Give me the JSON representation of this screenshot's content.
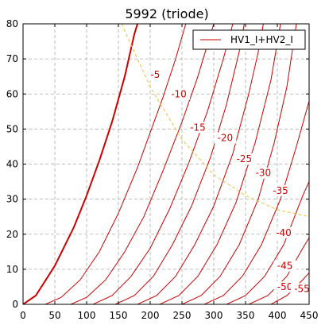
{
  "chart_data": {
    "type": "line",
    "title": "5992 (triode)",
    "xlabel": "",
    "ylabel": "",
    "xlim": [
      0,
      450
    ],
    "ylim": [
      0,
      80
    ],
    "xticks": [
      0,
      50,
      100,
      150,
      200,
      250,
      300,
      350,
      400,
      450
    ],
    "yticks": [
      0,
      10,
      20,
      30,
      40,
      50,
      60,
      70,
      80
    ],
    "grid": true,
    "legend": {
      "position": "top-right",
      "entries": [
        "HV1_I+HV2_I"
      ]
    },
    "colors": {
      "curve": "#cc0000",
      "load_line": "#e8c53a",
      "grid": "#aaaaaa",
      "axis": "#000000"
    },
    "series": [
      {
        "grid_voltage": "0",
        "label": "",
        "points": [
          [
            0,
            0
          ],
          [
            20,
            2.5
          ],
          [
            50,
            11
          ],
          [
            80,
            22
          ],
          [
            100,
            31
          ],
          [
            120,
            41
          ],
          [
            140,
            52
          ],
          [
            160,
            65
          ],
          [
            175,
            77
          ],
          [
            180,
            80
          ]
        ]
      },
      {
        "grid_voltage": "-5",
        "label": "-5",
        "points": [
          [
            35,
            0
          ],
          [
            60,
            2
          ],
          [
            90,
            7
          ],
          [
            120,
            15
          ],
          [
            150,
            26
          ],
          [
            180,
            39
          ],
          [
            200,
            49
          ],
          [
            220,
            59
          ],
          [
            240,
            70
          ],
          [
            256,
            80
          ]
        ]
      },
      {
        "grid_voltage": "-10",
        "label": "-10",
        "points": [
          [
            75,
            0
          ],
          [
            100,
            2
          ],
          [
            130,
            7
          ],
          [
            160,
            15
          ],
          [
            190,
            25
          ],
          [
            220,
            38
          ],
          [
            250,
            52
          ],
          [
            275,
            65
          ],
          [
            300,
            80
          ]
        ]
      },
      {
        "grid_voltage": "-15",
        "label": "-15",
        "points": [
          [
            110,
            0
          ],
          [
            140,
            2.5
          ],
          [
            170,
            8
          ],
          [
            200,
            16
          ],
          [
            230,
            27
          ],
          [
            260,
            40
          ],
          [
            290,
            55
          ],
          [
            315,
            70
          ],
          [
            330,
            80
          ]
        ]
      },
      {
        "grid_voltage": "-20",
        "label": "-20",
        "points": [
          [
            145,
            0
          ],
          [
            175,
            2.5
          ],
          [
            205,
            8
          ],
          [
            235,
            17
          ],
          [
            265,
            28
          ],
          [
            295,
            42
          ],
          [
            320,
            57
          ],
          [
            340,
            72
          ],
          [
            348,
            80
          ]
        ]
      },
      {
        "grid_voltage": "-25",
        "label": "-25",
        "points": [
          [
            180,
            0
          ],
          [
            210,
            2.5
          ],
          [
            240,
            8
          ],
          [
            270,
            17
          ],
          [
            300,
            28
          ],
          [
            330,
            43
          ],
          [
            355,
            60
          ],
          [
            370,
            72
          ],
          [
            378,
            80
          ]
        ]
      },
      {
        "grid_voltage": "-30",
        "label": "-30",
        "points": [
          [
            215,
            0
          ],
          [
            245,
            2.5
          ],
          [
            275,
            8
          ],
          [
            305,
            17
          ],
          [
            335,
            29
          ],
          [
            365,
            46
          ],
          [
            390,
            64
          ],
          [
            405,
            80
          ]
        ]
      },
      {
        "grid_voltage": "-35",
        "label": "-35",
        "points": [
          [
            250,
            0
          ],
          [
            280,
            2.5
          ],
          [
            310,
            8
          ],
          [
            340,
            17
          ],
          [
            370,
            30
          ],
          [
            395,
            46
          ],
          [
            415,
            62
          ],
          [
            430,
            80
          ]
        ]
      },
      {
        "grid_voltage": "-40",
        "label": "-40",
        "points": [
          [
            285,
            0
          ],
          [
            315,
            2.5
          ],
          [
            345,
            8
          ],
          [
            375,
            17
          ],
          [
            405,
            30
          ],
          [
            430,
            45
          ],
          [
            450,
            58
          ]
        ]
      },
      {
        "grid_voltage": "-45",
        "label": "-45",
        "points": [
          [
            320,
            0
          ],
          [
            350,
            2.5
          ],
          [
            380,
            8
          ],
          [
            410,
            17
          ],
          [
            440,
            31
          ],
          [
            450,
            35
          ]
        ]
      },
      {
        "grid_voltage": "-50",
        "label": "-50",
        "points": [
          [
            355,
            0
          ],
          [
            385,
            2.5
          ],
          [
            415,
            8
          ],
          [
            440,
            16
          ],
          [
            450,
            19
          ]
        ]
      },
      {
        "grid_voltage": "-55",
        "label": "-55",
        "points": [
          [
            390,
            0
          ],
          [
            415,
            2.5
          ],
          [
            440,
            7
          ],
          [
            450,
            9
          ]
        ]
      }
    ],
    "load_line": {
      "points": [
        [
          155,
          80
        ],
        [
          200,
          62
        ],
        [
          250,
          47
        ],
        [
          300,
          37
        ],
        [
          350,
          31
        ],
        [
          400,
          27
        ],
        [
          450,
          25
        ]
      ]
    }
  }
}
